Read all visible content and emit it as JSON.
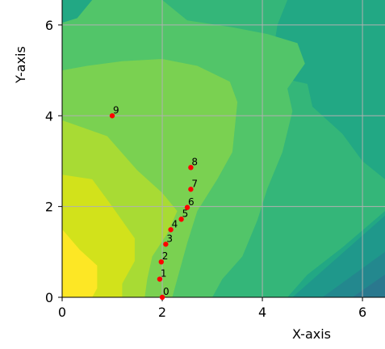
{
  "chart_data": {
    "type": "scatter",
    "title": "",
    "xlabel": "X-axis",
    "ylabel": "Y-axis",
    "xlim": [
      0,
      6.45
    ],
    "ylim": [
      0,
      6.55
    ],
    "xticks": [
      0,
      2,
      4,
      6
    ],
    "yticks": [
      0,
      2,
      4,
      6
    ],
    "grid": true,
    "background": "filled contour (viridis colormap): yellow at lower-left, green in the middle, dark teal toward lower-right",
    "point_color": "#ff0000",
    "points": [
      {
        "label": "0",
        "x": 2.0,
        "y": 0.0
      },
      {
        "label": "1",
        "x": 1.95,
        "y": 0.4
      },
      {
        "label": "2",
        "x": 1.98,
        "y": 0.78
      },
      {
        "label": "3",
        "x": 2.07,
        "y": 1.17
      },
      {
        "label": "4",
        "x": 2.17,
        "y": 1.49
      },
      {
        "label": "5",
        "x": 2.38,
        "y": 1.72
      },
      {
        "label": "6",
        "x": 2.5,
        "y": 1.98
      },
      {
        "label": "7",
        "x": 2.57,
        "y": 2.38
      },
      {
        "label": "8",
        "x": 2.57,
        "y": 2.86
      },
      {
        "label": "9",
        "x": 1.0,
        "y": 4.0
      }
    ],
    "contour_colors": [
      "#fde725",
      "#d2e21b",
      "#a8db34",
      "#7ad151",
      "#52c569",
      "#34b679",
      "#22a884",
      "#1f988b",
      "#23888e",
      "#2a788e",
      "#31688e"
    ]
  }
}
